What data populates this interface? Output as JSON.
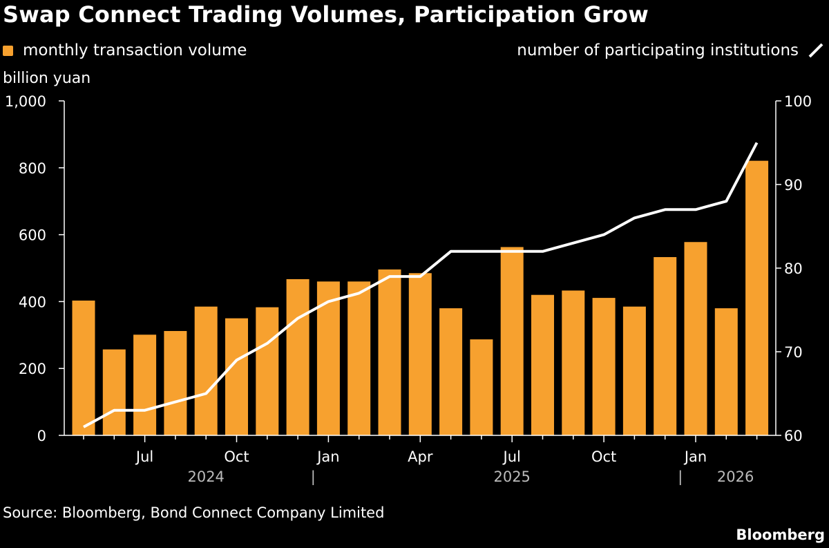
{
  "title": "Swap Connect Trading Volumes, Participation Grow",
  "legend": {
    "bars_label": "monthly transaction volume",
    "line_label": "number of participating institutions"
  },
  "source": "Source: Bloomberg, Bond Connect Company Limited",
  "brand": "Bloomberg",
  "colors": {
    "bar": "#f7a12f",
    "line": "#ffffff",
    "background": "#000000"
  },
  "chart_data": {
    "type": "bar",
    "ylabel": "billion yuan",
    "categories": [
      "2024-05",
      "2024-06",
      "2024-07",
      "2024-08",
      "2024-09",
      "2024-10",
      "2024-11",
      "2024-12",
      "2025-01",
      "2025-02",
      "2025-03",
      "2025-04",
      "2025-05",
      "2025-06",
      "2025-07",
      "2025-08",
      "2025-09",
      "2025-10",
      "2025-11",
      "2025-12",
      "2026-01",
      "2026-02",
      "2026-03"
    ],
    "series": [
      {
        "name": "monthly transaction volume",
        "type": "bar",
        "axis": "left",
        "values": [
          403,
          257,
          301,
          312,
          385,
          350,
          383,
          467,
          460,
          460,
          496,
          485,
          380,
          287,
          563,
          420,
          433,
          411,
          385,
          533,
          578,
          380,
          821
        ]
      },
      {
        "name": "number of participating institutions",
        "type": "line",
        "axis": "right",
        "values": [
          61,
          63,
          63,
          64,
          65,
          69,
          71,
          74,
          76,
          77,
          79,
          79,
          82,
          82,
          82,
          82,
          83,
          84,
          86,
          87,
          87,
          88,
          95
        ]
      }
    ],
    "ylim_left": [
      0,
      1000
    ],
    "ylim_right": [
      60,
      100
    ],
    "left_ticks": [
      "0",
      "200",
      "400",
      "600",
      "800",
      "1,000"
    ],
    "left_tick_values": [
      0,
      200,
      400,
      600,
      800,
      1000
    ],
    "right_ticks": [
      "60",
      "70",
      "80",
      "90",
      "100"
    ],
    "right_tick_values": [
      60,
      70,
      80,
      90,
      100
    ],
    "x_tick_labels": [
      {
        "index": 2,
        "label": "Jul"
      },
      {
        "index": 5,
        "label": "Oct"
      },
      {
        "index": 8,
        "label": "Jan"
      },
      {
        "index": 11,
        "label": "Apr"
      },
      {
        "index": 14,
        "label": "Jul"
      },
      {
        "index": 17,
        "label": "Oct"
      },
      {
        "index": 20,
        "label": "Jan"
      }
    ],
    "year_labels": [
      {
        "label": "2024",
        "center_index": 4
      },
      {
        "label": "2025",
        "center_index": 14
      },
      {
        "label": "2026",
        "center_index": 21.3
      }
    ],
    "year_separators": [
      "|",
      "|"
    ],
    "year_separator_indices": [
      7.5,
      19.5
    ],
    "grid": false
  }
}
